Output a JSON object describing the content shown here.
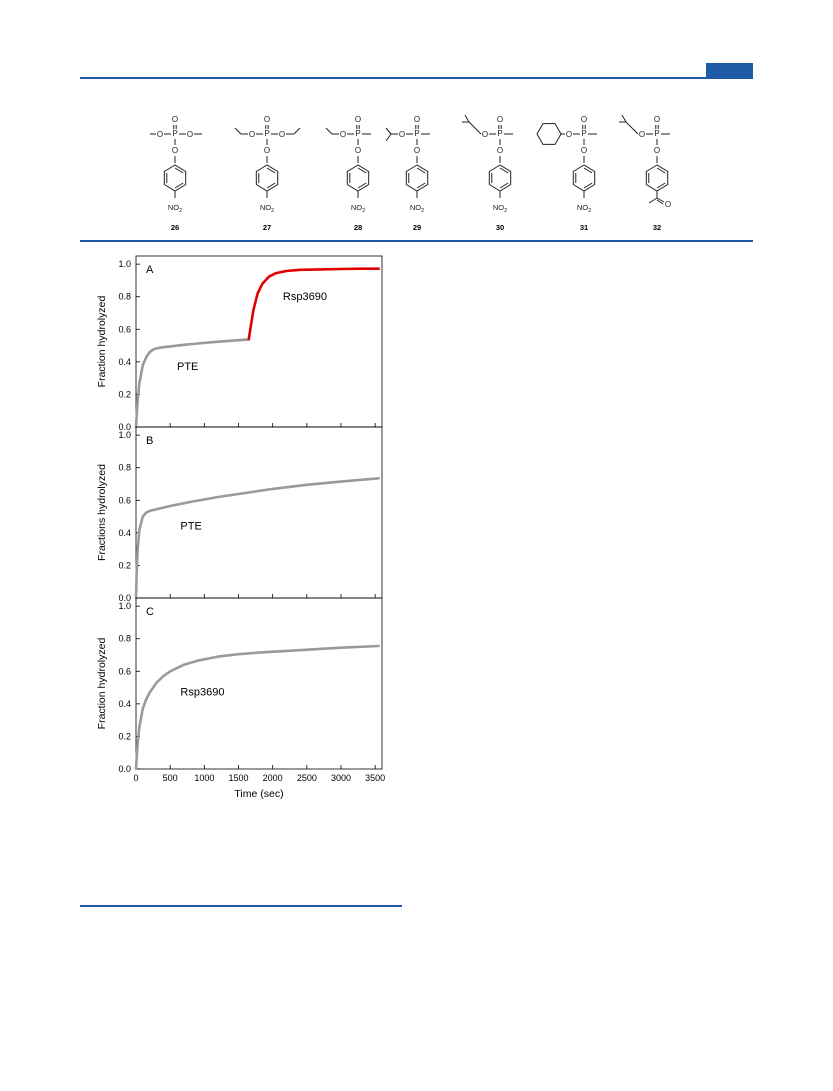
{
  "colors": {
    "accent": "#1f5aa6",
    "pte_curve": "#9a9a9a",
    "rsp_curve": "#e00000",
    "structure": "#222222"
  },
  "compounds": [
    {
      "label": "26",
      "substituent": "NO",
      "substituent_sub": "2"
    },
    {
      "label": "27",
      "substituent": "NO",
      "substituent_sub": "2"
    },
    {
      "label": "28",
      "substituent": "NO",
      "substituent_sub": "2"
    },
    {
      "label": "29",
      "substituent": "NO",
      "substituent_sub": "2"
    },
    {
      "label": "30",
      "substituent": "NO",
      "substituent_sub": "2"
    },
    {
      "label": "31",
      "substituent": "NO",
      "substituent_sub": "2"
    },
    {
      "label": "32",
      "substituent": "",
      "substituent_sub": ""
    }
  ],
  "atom_labels": {
    "O": "O",
    "P": "P"
  },
  "chart_data": [
    {
      "type": "line",
      "panel_label": "A",
      "ylabel": "Fraction hydrolyzed",
      "xlim": [
        0,
        3600
      ],
      "ylim": [
        0,
        1.05
      ],
      "yticks": [
        "0.0",
        "0.2",
        "0.4",
        "0.6",
        "0.8",
        "1.0"
      ],
      "series": [
        {
          "name": "PTE",
          "color": "#9a9a9a",
          "x": [
            0,
            25,
            50,
            100,
            150,
            200,
            250,
            300,
            400,
            500,
            700,
            900,
            1100,
            1300,
            1500,
            1650
          ],
          "y": [
            0,
            0.17,
            0.27,
            0.38,
            0.43,
            0.46,
            0.475,
            0.483,
            0.49,
            0.495,
            0.505,
            0.513,
            0.52,
            0.527,
            0.533,
            0.538
          ]
        },
        {
          "name": "Rsp3690",
          "color": "#e00000",
          "x": [
            1650,
            1680,
            1720,
            1780,
            1850,
            1950,
            2050,
            2200,
            2400,
            2700,
            3000,
            3300,
            3550
          ],
          "y": [
            0.54,
            0.62,
            0.72,
            0.82,
            0.88,
            0.925,
            0.945,
            0.958,
            0.965,
            0.968,
            0.97,
            0.972,
            0.972
          ]
        }
      ],
      "annotations": [
        {
          "text": "PTE",
          "x": 600,
          "y": 0.35
        },
        {
          "text": "Rsp3690",
          "x": 2150,
          "y": 0.78
        }
      ]
    },
    {
      "type": "line",
      "panel_label": "B",
      "ylabel": "Fractions hydrolyzed",
      "xlim": [
        0,
        3600
      ],
      "ylim": [
        0,
        1.05
      ],
      "yticks": [
        "0.0",
        "0.2",
        "0.4",
        "0.6",
        "0.8",
        "1.0"
      ],
      "series": [
        {
          "name": "PTE",
          "color": "#9a9a9a",
          "x": [
            0,
            10,
            25,
            50,
            100,
            150,
            200,
            300,
            500,
            800,
            1200,
            1600,
            2000,
            2500,
            3000,
            3550
          ],
          "y": [
            0,
            0.16,
            0.3,
            0.42,
            0.5,
            0.525,
            0.535,
            0.545,
            0.565,
            0.59,
            0.62,
            0.645,
            0.67,
            0.695,
            0.715,
            0.735
          ]
        }
      ],
      "annotations": [
        {
          "text": "PTE",
          "x": 650,
          "y": 0.42
        }
      ]
    },
    {
      "type": "line",
      "panel_label": "C",
      "ylabel": "Fraction hydrolyzed",
      "xlabel": "Time (sec)",
      "xlim": [
        0,
        3600
      ],
      "ylim": [
        0,
        1.05
      ],
      "xticks": [
        "0",
        "500",
        "1000",
        "1500",
        "2000",
        "2500",
        "3000",
        "3500"
      ],
      "yticks": [
        "0.0",
        "0.2",
        "0.4",
        "0.6",
        "0.8",
        "1.0"
      ],
      "series": [
        {
          "name": "Rsp3690",
          "color": "#9a9a9a",
          "x": [
            0,
            25,
            50,
            100,
            150,
            200,
            300,
            400,
            500,
            700,
            900,
            1200,
            1500,
            1800,
            2200,
            2600,
            3000,
            3400,
            3550
          ],
          "y": [
            0,
            0.16,
            0.26,
            0.37,
            0.43,
            0.47,
            0.53,
            0.57,
            0.6,
            0.64,
            0.665,
            0.69,
            0.705,
            0.715,
            0.725,
            0.735,
            0.745,
            0.752,
            0.755
          ]
        }
      ],
      "annotations": [
        {
          "text": "Rsp3690",
          "x": 650,
          "y": 0.45
        }
      ]
    }
  ]
}
